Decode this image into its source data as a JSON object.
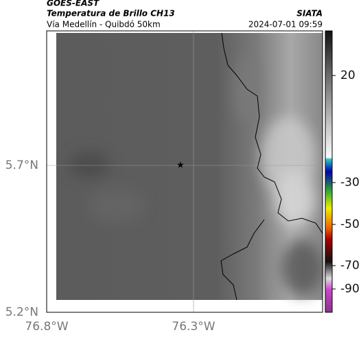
{
  "header": {
    "product": "GOES-EAST",
    "title": "Temperatura de Brillo CH13",
    "subtitle": "Vía Medellín - Quibdó 50km",
    "source": "SIATA",
    "datetime": "2024-07-01 09:59"
  },
  "axes": {
    "lat_labels": [
      "5.7°N",
      "5.2°N"
    ],
    "lon_labels": [
      "76.8°W",
      "76.3°W"
    ]
  },
  "colorbar": {
    "tick_labels": [
      "20",
      "-30",
      "-50",
      "-70",
      "-90"
    ]
  }
}
